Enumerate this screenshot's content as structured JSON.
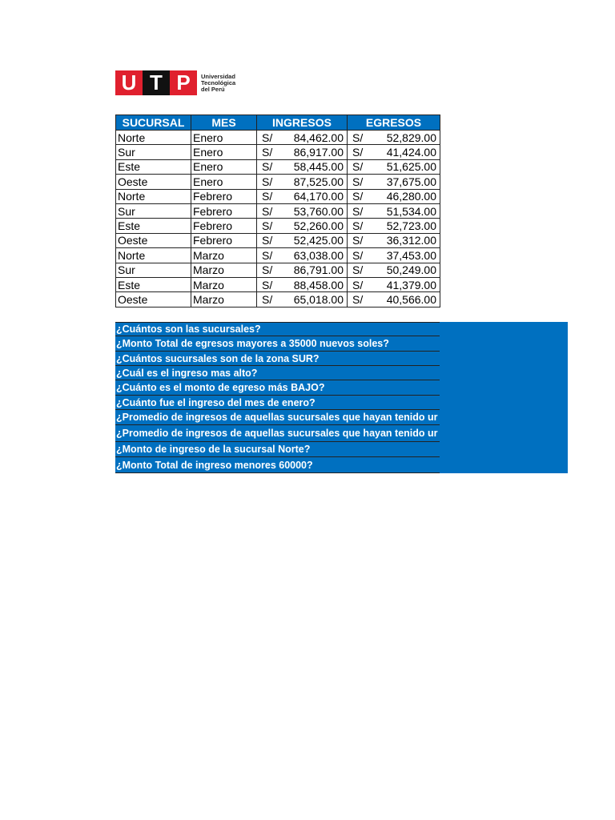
{
  "logo": {
    "letters": [
      "U",
      "T",
      "P"
    ],
    "text": [
      "Universidad",
      "Tecnológica",
      "del Perú"
    ],
    "brand_color": "#e0202e"
  },
  "table": {
    "headers": [
      "SUCURSAL",
      "MES",
      "INGRESOS",
      "EGRESOS"
    ],
    "currency": "S/",
    "rows": [
      {
        "sucursal": "Norte",
        "mes": "Enero",
        "ingresos": "84,462.00",
        "egresos": "52,829.00"
      },
      {
        "sucursal": "Sur",
        "mes": "Enero",
        "ingresos": "86,917.00",
        "egresos": "41,424.00"
      },
      {
        "sucursal": "Este",
        "mes": "Enero",
        "ingresos": "58,445.00",
        "egresos": "51,625.00"
      },
      {
        "sucursal": "Oeste",
        "mes": "Enero",
        "ingresos": "87,525.00",
        "egresos": "37,675.00"
      },
      {
        "sucursal": "Norte",
        "mes": "Febrero",
        "ingresos": "64,170.00",
        "egresos": "46,280.00"
      },
      {
        "sucursal": "Sur",
        "mes": "Febrero",
        "ingresos": "53,760.00",
        "egresos": "51,534.00"
      },
      {
        "sucursal": "Este",
        "mes": "Febrero",
        "ingresos": "52,260.00",
        "egresos": "52,723.00"
      },
      {
        "sucursal": "Oeste",
        "mes": "Febrero",
        "ingresos": "52,425.00",
        "egresos": "36,312.00"
      },
      {
        "sucursal": "Norte",
        "mes": "Marzo",
        "ingresos": "63,038.00",
        "egresos": "37,453.00"
      },
      {
        "sucursal": "Sur",
        "mes": "Marzo",
        "ingresos": "86,791.00",
        "egresos": "50,249.00"
      },
      {
        "sucursal": "Este",
        "mes": "Marzo",
        "ingresos": "88,458.00",
        "egresos": "41,379.00"
      },
      {
        "sucursal": "Oeste",
        "mes": "Marzo",
        "ingresos": "65,018.00",
        "egresos": "40,566.00"
      }
    ],
    "header_color": "#0070c0"
  },
  "questions": [
    "¿Cuántos son las sucursales?",
    "¿Monto Total de egresos mayores a 35000 nuevos soles?",
    "¿Cuántos sucursales son de la zona SUR?",
    "¿Cuál es el ingreso mas alto?",
    "¿Cuánto es el monto de egreso más BAJO?",
    "¿Cuánto fue el ingreso del mes de enero?",
    "¿Promedio de ingresos de aquellas sucursales que hayan tenido ur",
    "¿Promedio de ingresos de aquellas sucursales que hayan tenido ur",
    "¿Monto de ingreso de la sucursal Norte?",
    "¿Monto Total de ingreso menores 60000?"
  ]
}
